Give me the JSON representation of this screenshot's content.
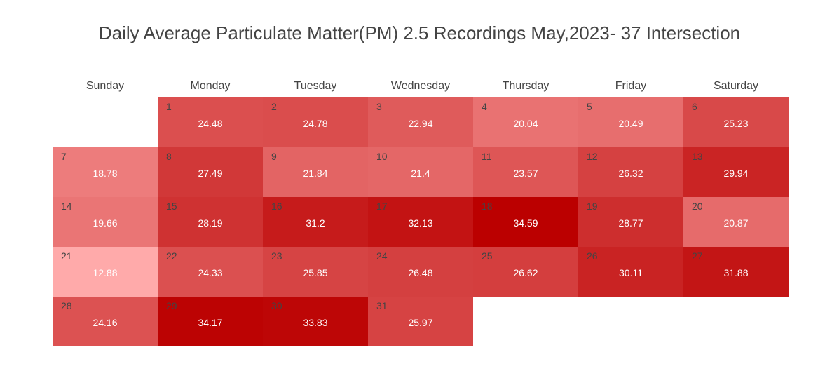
{
  "chart_data": {
    "type": "heatmap",
    "title": "Daily Average Particulate Matter(PM) 2.5 Recordings May,2023- 37 Intersection",
    "weekdays": [
      "Sunday",
      "Monday",
      "Tuesday",
      "Wednesday",
      "Thursday",
      "Friday",
      "Saturday"
    ],
    "first_weekday_index": 1,
    "days": [
      1,
      2,
      3,
      4,
      5,
      6,
      7,
      8,
      9,
      10,
      11,
      12,
      13,
      14,
      15,
      16,
      17,
      18,
      19,
      20,
      21,
      22,
      23,
      24,
      25,
      26,
      27,
      28,
      29,
      30,
      31
    ],
    "values": [
      24.48,
      24.78,
      22.94,
      20.04,
      20.49,
      25.23,
      18.78,
      27.49,
      21.84,
      21.4,
      23.57,
      26.32,
      29.94,
      19.66,
      28.19,
      31.2,
      32.13,
      34.59,
      28.77,
      20.87,
      12.88,
      24.33,
      25.85,
      26.48,
      26.62,
      30.11,
      31.88,
      24.16,
      34.17,
      33.83,
      25.97
    ],
    "color_scale": {
      "low_color": "#ffaaaa",
      "high_color": "#bb0000",
      "min": 12.88,
      "max": 34.59
    },
    "legend": "none",
    "grid": false
  }
}
